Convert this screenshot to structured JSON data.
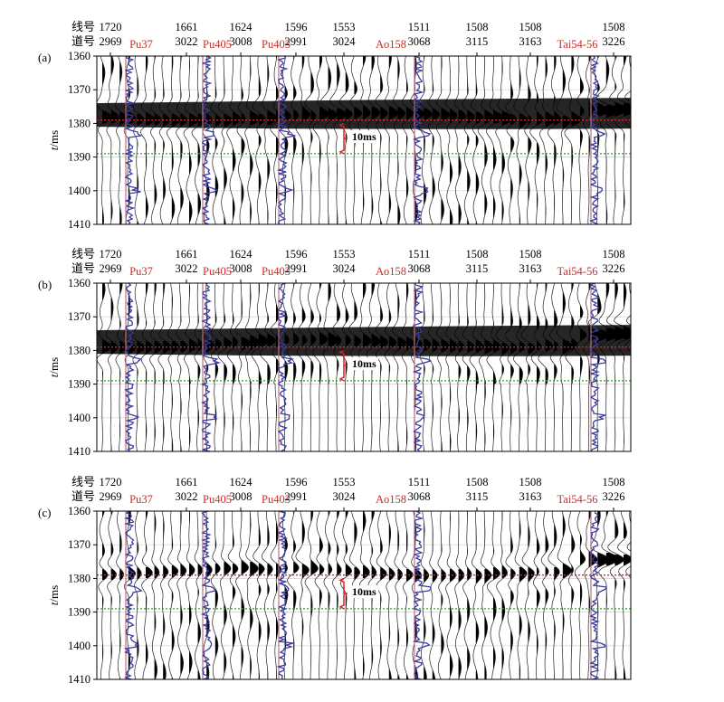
{
  "header_labels": {
    "line_label": "线号",
    "trace_label": "道号"
  },
  "traces": [
    {
      "line": "1720",
      "trace": "2969"
    },
    {
      "line": "1661",
      "trace": "3022"
    },
    {
      "line": "1624",
      "trace": "3008"
    },
    {
      "line": "1596",
      "trace": "2991"
    },
    {
      "line": "1553",
      "trace": "3024"
    },
    {
      "line": "1511",
      "trace": "3068"
    },
    {
      "line": "1508",
      "trace": "3115"
    },
    {
      "line": "1508",
      "trace": "3163"
    },
    {
      "line": "1508",
      "trace": "3226"
    }
  ],
  "wells": [
    "Pu37",
    "Pu405",
    "Pu403",
    "Ao158",
    "Tai54-56"
  ],
  "panels": [
    {
      "label": "(a)"
    },
    {
      "label": "(b)"
    },
    {
      "label": "(c)"
    }
  ],
  "y_axis": {
    "label_italic": "t",
    "label_rest": "/ms",
    "ticks": [
      1360,
      1370,
      1380,
      1390,
      1400,
      1410
    ]
  },
  "annotation": {
    "text": "10ms"
  },
  "colors": {
    "well_label": "#d42a24",
    "red_horizon": "#e02020",
    "green_horizon": "#2e9a2e",
    "well_log": "#3a3aa0",
    "well_track": "#c07080"
  }
}
